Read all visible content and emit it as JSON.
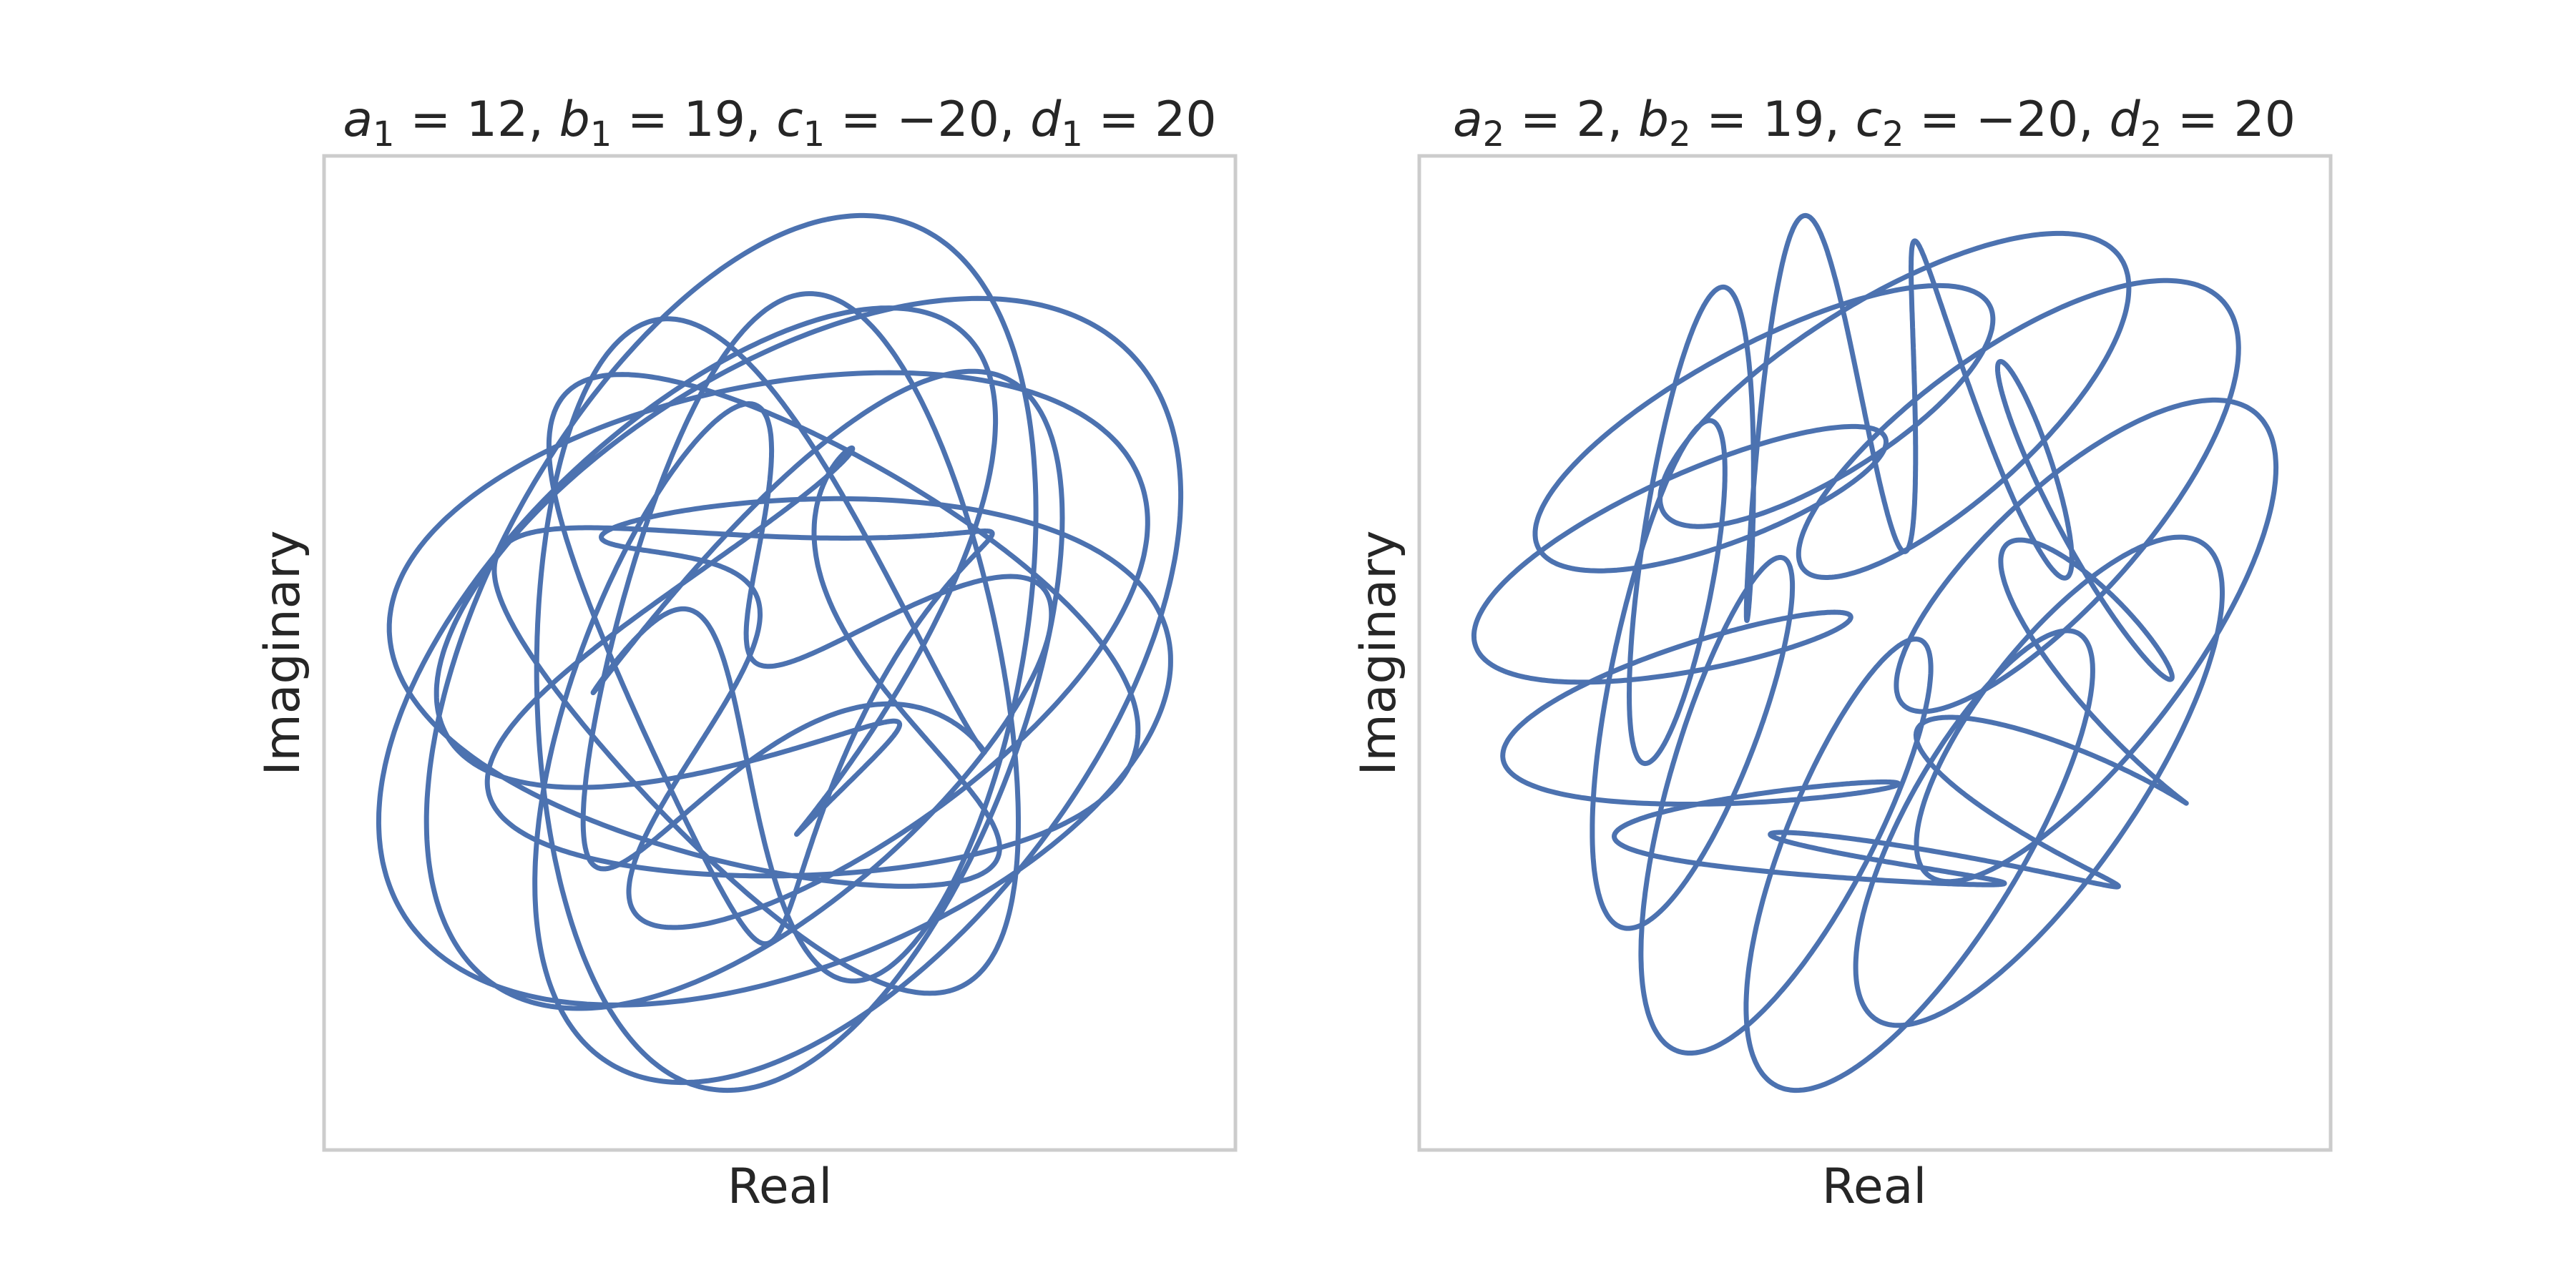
{
  "chart_data": [
    {
      "type": "line",
      "title": "a_1 = 12, b_1 = 19, c_1 = -20, d_1 = 20",
      "title_parts": {
        "a": "a",
        "b": "b",
        "c": "c",
        "d": "d",
        "sub": "1",
        "a_val": "12",
        "b_val": "19",
        "c_val": "−20",
        "d_val": "20"
      },
      "xlabel": "Real",
      "ylabel": "Imaginary",
      "params": {
        "a": 12,
        "b": 19,
        "c": -20,
        "d": 20
      },
      "grid": false,
      "ticks": false,
      "color": "#4c72b0"
    },
    {
      "type": "line",
      "title": "a_2 = 2, b_2 = 19, c_2 = -20, d_2 = 20",
      "title_parts": {
        "a": "a",
        "b": "b",
        "c": "c",
        "d": "d",
        "sub": "2",
        "a_val": "2",
        "b_val": "19",
        "c_val": "−20",
        "d_val": "20"
      },
      "xlabel": "Real",
      "ylabel": "Imaginary",
      "params": {
        "a": 2,
        "b": 19,
        "c": -20,
        "d": 20
      },
      "grid": false,
      "ticks": false,
      "color": "#4c72b0"
    }
  ]
}
